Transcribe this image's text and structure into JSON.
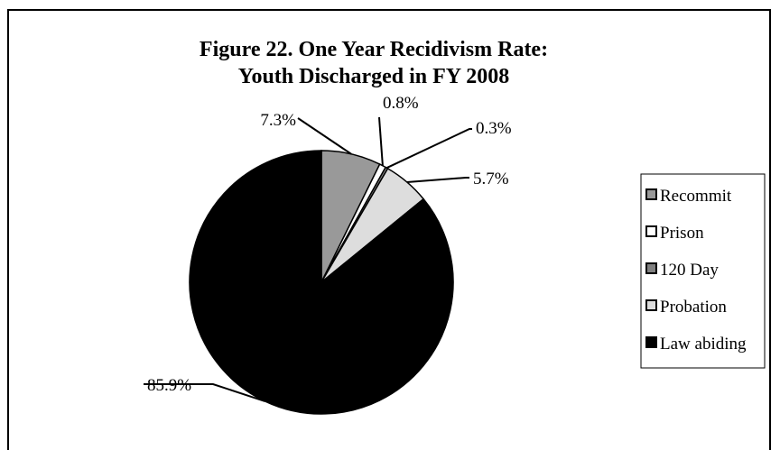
{
  "chart_data": {
    "type": "pie",
    "title_line1": "Figure 22.  One Year Recidivism Rate:",
    "title_line2": "Youth Discharged in FY 2008",
    "slices": [
      {
        "label": "Recommit",
        "value": 7.3,
        "value_label": "7.3%",
        "color": "#999999"
      },
      {
        "label": "Prison",
        "value": 0.8,
        "value_label": "0.8%",
        "color": "#ffffff"
      },
      {
        "label": "120 Day",
        "value": 0.3,
        "value_label": "0.3%",
        "color": "#808080"
      },
      {
        "label": "Probation",
        "value": 5.7,
        "value_label": "5.7%",
        "color": "#dddddd"
      },
      {
        "label": "Law abiding",
        "value": 85.9,
        "value_label": "85.9%",
        "color": "#000000"
      }
    ],
    "legend_position": "right",
    "start_angle": "12 o'clock",
    "direction": "clockwise"
  }
}
